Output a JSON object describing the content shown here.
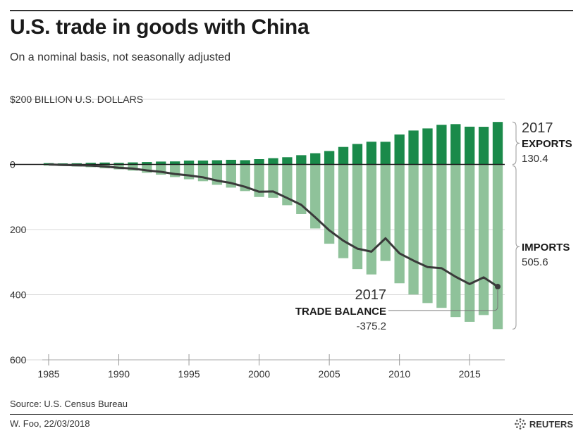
{
  "title": "U.S. trade in goods with China",
  "subtitle": "On a nominal basis, not seasonally adjusted",
  "source": "Source: U.S. Census Bureau",
  "credit": "W. Foo, 22/03/2018",
  "brand": "REUTERS",
  "brand_icon": "reuters-dots-logo",
  "colors": {
    "exports": "#1a8a4a",
    "imports": "#8fc29a",
    "balance": "#3a3a3a",
    "grid": "#d8d8d8",
    "zero": "#1a1a1a"
  },
  "annotations": {
    "exports": {
      "year": "2017",
      "label": "EXPORTS",
      "value": "130.4"
    },
    "imports": {
      "label": "IMPORTS",
      "value": "505.6"
    },
    "balance": {
      "year": "2017",
      "label": "TRADE BALANCE",
      "value": "-375.2"
    }
  },
  "chart_data": {
    "type": "bar",
    "ylabel": "$200 BILLION U.S. DOLLARS",
    "ylim": [
      -600,
      200
    ],
    "y_ticks": [
      {
        "value": 200,
        "label": ""
      },
      {
        "value": 0,
        "label": "0"
      },
      {
        "value": -200,
        "label": "200"
      },
      {
        "value": -400,
        "label": "400"
      },
      {
        "value": -600,
        "label": "600"
      }
    ],
    "x_ticks": [
      1985,
      1990,
      1995,
      2000,
      2005,
      2010,
      2015
    ],
    "x_tick_labels": [
      "1985",
      "1990",
      "1995",
      "2000",
      "2005",
      "2010",
      "2015"
    ],
    "grid": true,
    "categories": [
      1985,
      1986,
      1987,
      1988,
      1989,
      1990,
      1991,
      1992,
      1993,
      1994,
      1995,
      1996,
      1997,
      1998,
      1999,
      2000,
      2001,
      2002,
      2003,
      2004,
      2005,
      2006,
      2007,
      2008,
      2009,
      2010,
      2011,
      2012,
      2013,
      2014,
      2015,
      2016,
      2017
    ],
    "series": [
      {
        "name": "EXPORTS",
        "kind": "bar",
        "values": [
          3.9,
          3.1,
          3.5,
          5.0,
          5.8,
          4.8,
          6.3,
          7.4,
          8.8,
          9.3,
          11.8,
          12.0,
          12.9,
          14.2,
          13.1,
          16.2,
          19.2,
          22.1,
          28.4,
          34.4,
          41.2,
          53.7,
          62.9,
          69.7,
          69.5,
          91.9,
          104.1,
          110.5,
          121.7,
          123.7,
          115.9,
          115.6,
          130.4
        ]
      },
      {
        "name": "IMPORTS",
        "kind": "bar",
        "values": [
          -3.9,
          -4.8,
          -6.3,
          -8.5,
          -12.0,
          -15.2,
          -19.0,
          -25.7,
          -31.5,
          -38.8,
          -45.6,
          -51.5,
          -62.6,
          -71.2,
          -81.8,
          -100.0,
          -102.3,
          -125.2,
          -152.4,
          -196.7,
          -243.5,
          -287.8,
          -321.4,
          -337.8,
          -296.4,
          -364.9,
          -399.4,
          -425.6,
          -440.4,
          -468.5,
          -483.2,
          -462.4,
          -505.6
        ]
      },
      {
        "name": "TRADE BALANCE",
        "kind": "line",
        "values": [
          0,
          -1.7,
          -2.8,
          -3.5,
          -6.2,
          -10.4,
          -12.7,
          -18.3,
          -22.8,
          -29.5,
          -33.8,
          -39.5,
          -49.7,
          -57.0,
          -68.7,
          -83.8,
          -83.1,
          -103.1,
          -124.1,
          -162.3,
          -202.3,
          -234.1,
          -258.5,
          -268.0,
          -226.9,
          -273.0,
          -295.3,
          -315.1,
          -318.7,
          -344.8,
          -367.3,
          -346.8,
          -375.2
        ]
      }
    ]
  }
}
